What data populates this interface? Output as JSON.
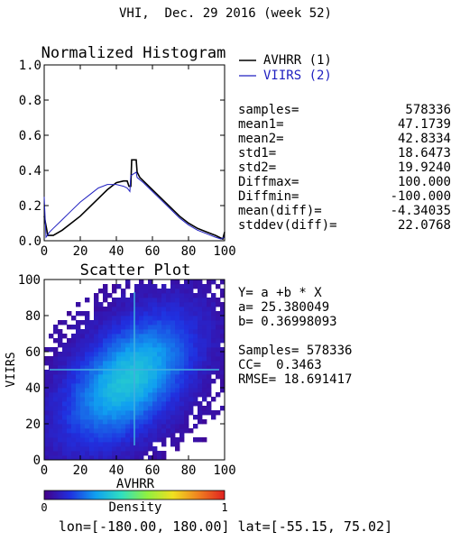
{
  "header": {
    "title": "VHI,  Dec. 29 2016 (week 52)"
  },
  "histogram": {
    "title": "Normalized Histogram",
    "legend": [
      {
        "label": "AVHRR (1)",
        "color": "#000000"
      },
      {
        "label": "VIIRS (2)",
        "color": "#2020c0"
      }
    ],
    "stats": [
      {
        "label": "samples=",
        "value": "578336"
      },
      {
        "label": "mean1=",
        "value": "47.1739"
      },
      {
        "label": "mean2=",
        "value": "42.8334"
      },
      {
        "label": "std1=",
        "value": "18.6473"
      },
      {
        "label": "std2=",
        "value": "19.9240"
      },
      {
        "label": "Diffmax=",
        "value": "100.000"
      },
      {
        "label": "Diffmin=",
        "value": "-100.000"
      },
      {
        "label": "mean(diff)=",
        "value": "-4.34035"
      },
      {
        "label": "stddev(diff)=",
        "value": "22.0768"
      }
    ]
  },
  "scatter": {
    "title": "Scatter Plot",
    "regression": {
      "equation": "Y= a +b * X",
      "a": "a= 25.380049",
      "b": "b= 0.36998093",
      "samples": "Samples= 578336",
      "cc": "CC=  0.3463",
      "rmse": "RMSE= 18.691417"
    }
  },
  "colorbar": {
    "label": "Density",
    "min_label": "0",
    "max_label": "1"
  },
  "footer": {
    "extent": "lon=[-180.00, 180.00] lat=[-55.15, 75.02]"
  },
  "chart_data": [
    {
      "type": "line",
      "title": "Normalized Histogram",
      "xlabel": "",
      "ylabel": "",
      "xlim": [
        0,
        100
      ],
      "ylim": [
        0,
        1
      ],
      "xticks": [
        "0",
        "20",
        "40",
        "60",
        "80",
        "100"
      ],
      "yticks": [
        "0.0",
        "0.2",
        "0.4",
        "0.6",
        "0.8",
        "1.0"
      ],
      "series": [
        {
          "name": "AVHRR (1)",
          "color": "#000000",
          "x": [
            0,
            2,
            5,
            10,
            15,
            20,
            25,
            30,
            35,
            40,
            44,
            46,
            47,
            48,
            48.5,
            51,
            51.5,
            53,
            55,
            60,
            65,
            70,
            75,
            80,
            85,
            90,
            95,
            97,
            99,
            100
          ],
          "y": [
            0.14,
            0.03,
            0.03,
            0.06,
            0.1,
            0.14,
            0.19,
            0.24,
            0.29,
            0.33,
            0.34,
            0.34,
            0.31,
            0.31,
            0.46,
            0.46,
            0.39,
            0.36,
            0.34,
            0.29,
            0.24,
            0.19,
            0.14,
            0.1,
            0.07,
            0.05,
            0.03,
            0.02,
            0.01,
            0.05
          ]
        },
        {
          "name": "VIIRS (2)",
          "color": "#2020c0",
          "x": [
            0,
            1,
            3,
            5,
            10,
            15,
            20,
            25,
            30,
            35,
            40,
            44,
            46,
            47.5,
            48,
            51,
            51.5,
            55,
            60,
            65,
            70,
            75,
            80,
            85,
            90,
            95,
            98,
            100
          ],
          "y": [
            0.25,
            0.02,
            0.05,
            0.07,
            0.12,
            0.17,
            0.22,
            0.26,
            0.3,
            0.32,
            0.32,
            0.31,
            0.3,
            0.28,
            0.37,
            0.39,
            0.36,
            0.33,
            0.28,
            0.23,
            0.18,
            0.13,
            0.09,
            0.06,
            0.04,
            0.02,
            0.01,
            0.02
          ]
        }
      ]
    },
    {
      "type": "heatmap",
      "title": "Scatter Plot",
      "xlabel": "AVHRR",
      "ylabel": "VIIRS",
      "xlim": [
        0,
        100
      ],
      "ylim": [
        0,
        100
      ],
      "xticks": [
        "0",
        "20",
        "40",
        "60",
        "80",
        "100"
      ],
      "yticks": [
        "0",
        "20",
        "40",
        "60",
        "80",
        "100"
      ],
      "density_center": [
        47,
        45
      ],
      "crosshair": {
        "x": 50,
        "y": 50
      },
      "colorscale": [
        "#440088",
        "#2030e0",
        "#10a0f0",
        "#30e0c0",
        "#90f040",
        "#f0e020",
        "#f08020",
        "#e02020"
      ]
    }
  ]
}
